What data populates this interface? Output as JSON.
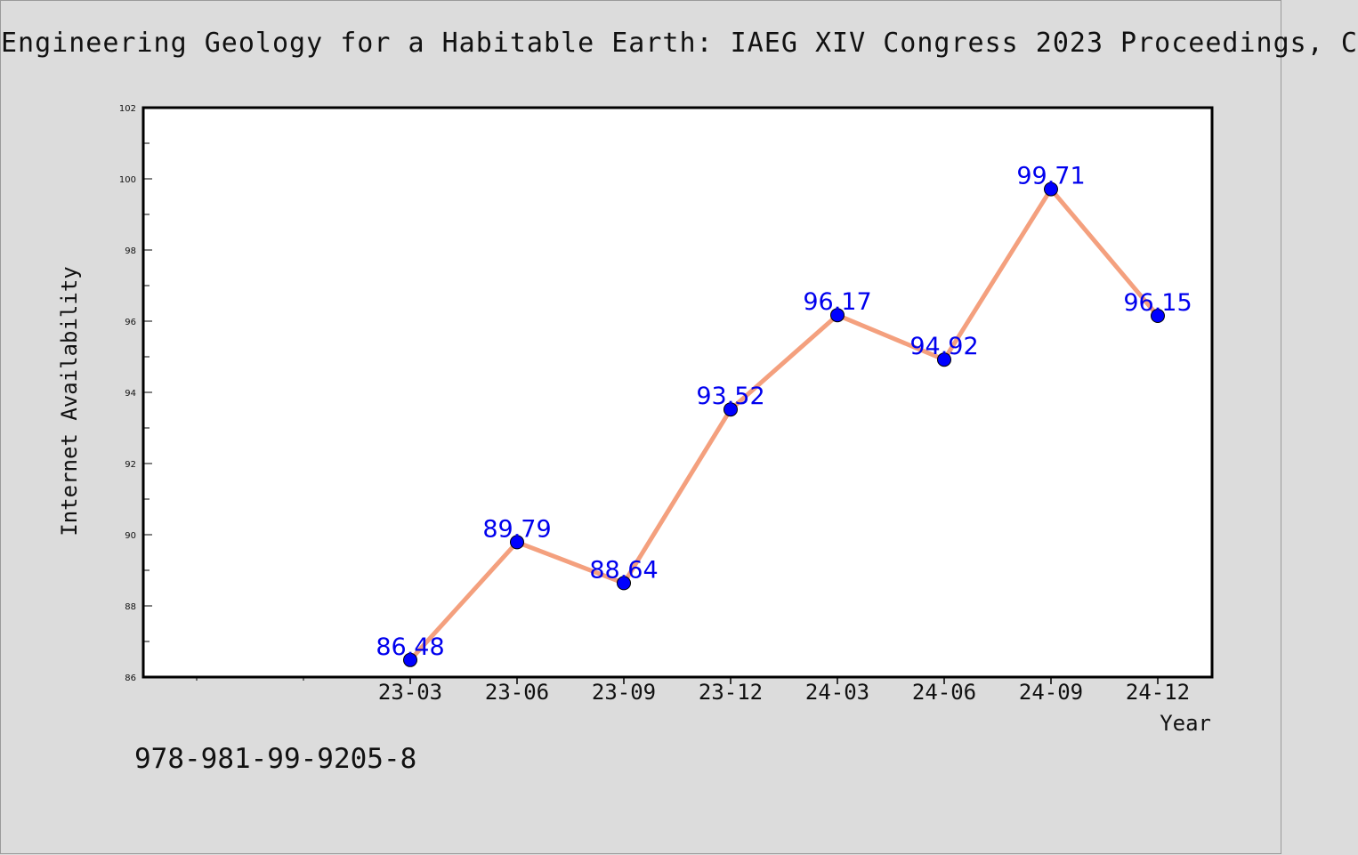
{
  "chart_data": {
    "type": "line",
    "title": "Engineering Geology for a Habitable Earth: IAEG XIV Congress 2023 Proceedings, C",
    "xlabel": "Year",
    "ylabel": "Internet Availability",
    "categories": [
      "23-03",
      "23-06",
      "23-09",
      "23-12",
      "24-03",
      "24-06",
      "24-09",
      "24-12"
    ],
    "series": [
      {
        "values": [
          86.48,
          89.79,
          88.64,
          93.52,
          96.17,
          94.92,
          99.71,
          96.15
        ]
      }
    ],
    "data_labels": [
      "86.48",
      "89.79",
      "88.64",
      "93.52",
      "96.17",
      "94.92",
      "99.71",
      "96.15"
    ],
    "ylim": [
      86,
      102
    ],
    "yticks": [
      "86",
      "88",
      "90",
      "92",
      "94",
      "96",
      "98",
      "100",
      "102"
    ],
    "grid": false,
    "legend": "none",
    "line_color": "#f4a07e",
    "marker_color": "#0000ff",
    "label_color": "#0000ee"
  },
  "footer": {
    "isbn": "978-981-99-9205-8"
  }
}
